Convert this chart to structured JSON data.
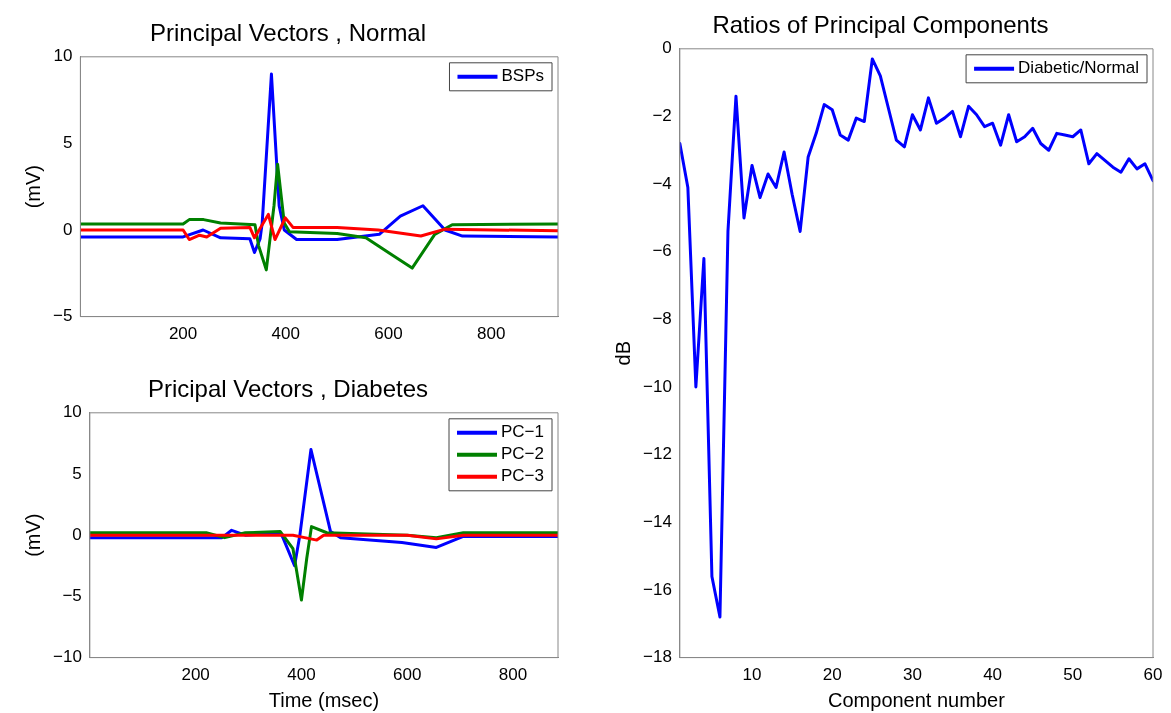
{
  "chart_data": [
    {
      "type": "line",
      "title": "Principal Vectors , Normal",
      "ylabel": "(mV)",
      "xlim": [
        0,
        930
      ],
      "xticks": [
        200,
        400,
        600,
        800
      ],
      "ylim": [
        -5,
        10
      ],
      "yticks": [
        -5,
        0,
        5,
        10
      ],
      "legend": "top right",
      "marker": "none",
      "series": [
        {
          "name": "BSPs",
          "color": "#0000ff",
          "x": [
            0,
            200,
            239,
            273,
            330,
            339,
            350,
            354,
            372,
            387,
            397,
            421,
            500,
            582,
            623,
            667,
            710,
            744,
            930
          ],
          "values": [
            -0.4,
            -0.4,
            0,
            -0.45,
            -0.5,
            -1.3,
            -0.5,
            0.4,
            9.0,
            1.4,
            0,
            -0.55,
            -0.55,
            -0.25,
            0.8,
            1.4,
            0,
            -0.35,
            -0.4
          ]
        },
        {
          "color": "#008000",
          "x": [
            0,
            200,
            212,
            240,
            273,
            340,
            347,
            362,
            377,
            384,
            397,
            407,
            500,
            556,
            646,
            690,
            724,
            930
          ],
          "values": [
            0.35,
            0.35,
            0.6,
            0.6,
            0.4,
            0.3,
            -0.9,
            -2.3,
            1.4,
            3.8,
            0.4,
            -0.1,
            -0.2,
            -0.45,
            -2.2,
            -0.25,
            0.3,
            0.35
          ]
        },
        {
          "color": "#ff0000",
          "x": [
            0,
            200,
            212,
            232,
            246,
            273,
            330,
            339,
            366,
            379,
            399,
            414,
            500,
            580,
            663,
            710,
            930
          ],
          "values": [
            0,
            0,
            -0.55,
            -0.3,
            -0.4,
            0.1,
            0.15,
            -0.45,
            0.9,
            -0.55,
            0.7,
            0.15,
            0.15,
            0,
            -0.35,
            0.05,
            -0.05
          ]
        }
      ]
    },
    {
      "type": "line",
      "title": "Pricipal Vectors , Diabetes",
      "xlabel": "Time (msec)",
      "ylabel": "(mV)",
      "xlim": [
        0,
        885
      ],
      "xticks": [
        200,
        400,
        600,
        800
      ],
      "ylim": [
        -10,
        10
      ],
      "yticks": [
        -10,
        -5,
        0,
        5,
        10
      ],
      "legend": "top right",
      "marker": "none",
      "series": [
        {
          "name": "PC−1",
          "color": "#0000ff",
          "x": [
            0,
            250,
            268,
            294,
            360,
            365,
            387,
            397,
            418,
            455,
            474,
            590,
            655,
            706,
            885
          ],
          "values": [
            -0.2,
            -0.2,
            0.4,
            0,
            0.2,
            -0.2,
            -2.5,
            0,
            7.0,
            0.3,
            -0.2,
            -0.6,
            -1.0,
            -0.1,
            -0.1
          ]
        },
        {
          "name": "PC−2",
          "color": "#008000",
          "x": [
            0,
            220,
            255,
            294,
            360,
            384,
            400,
            410,
            419,
            448,
            600,
            655,
            706,
            885
          ],
          "values": [
            0.2,
            0.2,
            -0.2,
            0.2,
            0.3,
            -1.1,
            -5.3,
            -1.9,
            0.7,
            0.2,
            0,
            -0.2,
            0.2,
            0.2
          ]
        },
        {
          "name": "PC−3",
          "color": "#ff0000",
          "x": [
            0,
            300,
            384,
            406,
            429,
            442,
            600,
            655,
            706,
            885
          ],
          "values": [
            0,
            0,
            0,
            -0.2,
            -0.4,
            0,
            0,
            -0.3,
            0,
            0
          ]
        }
      ]
    },
    {
      "type": "line",
      "title": "Ratios of Principal Components",
      "xlabel": "Component number",
      "ylabel": "dB",
      "x": [
        1,
        2,
        3,
        4,
        5,
        6,
        7,
        8,
        9,
        10,
        11,
        12,
        13,
        14,
        15,
        16,
        17,
        18,
        19,
        20,
        21,
        22,
        23,
        24,
        25,
        26,
        27,
        28,
        29,
        30,
        31,
        32,
        33,
        34,
        35,
        36,
        37,
        38,
        39,
        40,
        41,
        42,
        43,
        44,
        45,
        46,
        47,
        48,
        49,
        50,
        51,
        52,
        53,
        54,
        55,
        56,
        57,
        58,
        59,
        60
      ],
      "xlim": [
        1,
        60
      ],
      "xticks": [
        10,
        20,
        30,
        40,
        50,
        60
      ],
      "ylim": [
        -18,
        0
      ],
      "yticks": [
        -18,
        -16,
        -14,
        -12,
        -10,
        -8,
        -6,
        -4,
        -2,
        0
      ],
      "legend": "top right",
      "marker": "none",
      "series": [
        {
          "name": "Diabetic/Normal",
          "color": "#0000ff",
          "values": [
            -2.8,
            -4.1,
            -10,
            -6.2,
            -15.6,
            -16.8,
            -5.4,
            -1.4,
            -5.0,
            -3.45,
            -4.4,
            -3.7,
            -4.1,
            -3.05,
            -4.3,
            -5.4,
            -3.2,
            -2.5,
            -1.65,
            -1.8,
            -2.55,
            -2.7,
            -2.05,
            -2.15,
            -0.3,
            -0.8,
            -1.75,
            -2.7,
            -2.9,
            -1.95,
            -2.4,
            -1.45,
            -2.2,
            -2.05,
            -1.85,
            -2.6,
            -1.7,
            -1.95,
            -2.3,
            -2.2,
            -2.85,
            -1.95,
            -2.75,
            -2.6,
            -2.35,
            -2.8,
            -3.0,
            -2.5,
            -2.55,
            -2.6,
            -2.4,
            -3.4,
            -3.1,
            -3.3,
            -3.5,
            -3.65,
            -3.25,
            -3.55,
            -3.4,
            -3.9
          ]
        }
      ]
    }
  ]
}
